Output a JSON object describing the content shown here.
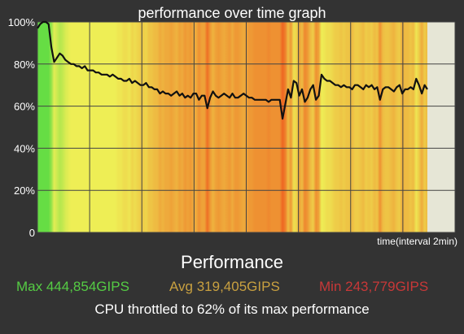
{
  "header": {
    "title": "performance over time graph"
  },
  "chart_data": {
    "type": "line",
    "title": "performance over time graph",
    "xlabel": "time(interval 2min)",
    "ylabel": "",
    "ylim": [
      0,
      100
    ],
    "y_ticks": [
      "0",
      "20%",
      "40%",
      "60%",
      "80%",
      "100%"
    ],
    "grid": true,
    "colors": {
      "plot_background": "#e6e6d6",
      "grid": "#444444",
      "line": "#111111",
      "high_perf": "#66dd44",
      "mid_perf": "#eeee55",
      "low_perf": "#ee6622"
    },
    "series": [
      {
        "values": [
          97,
          99,
          100,
          100,
          99,
          88,
          81,
          83,
          85,
          84,
          82,
          81,
          80,
          80,
          79,
          79,
          78,
          79,
          77,
          77,
          77,
          76,
          76,
          75,
          75,
          75,
          74,
          75,
          74,
          73,
          73,
          72,
          72,
          73,
          71,
          72,
          71,
          70,
          70,
          71,
          69,
          69,
          68,
          68,
          66,
          67,
          66,
          66,
          65,
          66,
          67,
          65,
          66,
          64,
          65,
          64,
          66,
          66,
          63,
          65,
          65,
          59,
          64,
          67,
          65,
          64,
          65,
          66,
          65,
          64,
          66,
          64,
          64,
          65,
          66,
          65,
          64,
          64,
          63,
          63,
          63,
          63,
          63,
          62,
          63,
          63,
          63,
          63,
          54,
          61,
          68,
          64,
          72,
          71,
          65,
          68,
          62,
          64,
          68,
          70,
          63,
          65,
          75,
          73,
          72,
          72,
          71,
          70,
          70,
          69,
          70,
          69,
          69,
          68,
          70,
          70,
          69,
          68,
          70,
          69,
          70,
          68,
          69,
          63,
          68,
          69,
          69,
          68,
          67,
          69,
          70,
          66,
          68,
          68,
          69,
          68,
          73,
          70,
          66,
          70,
          68
        ]
      }
    ],
    "stats": {
      "max": "Max 444,854GIPS",
      "avg": "Avg 319,405GIPS",
      "min": "Min 243,779GIPS"
    }
  },
  "footer": {
    "performance_title": "Performance",
    "max_label": "Max 444,854GIPS",
    "avg_label": "Avg 319,405GIPS",
    "min_label": "Min 243,779GIPS",
    "throttle_message": "CPU throttled to 62% of its max performance",
    "colors": {
      "max": "#55cc44",
      "avg": "#c8a040",
      "min": "#c83838"
    }
  }
}
